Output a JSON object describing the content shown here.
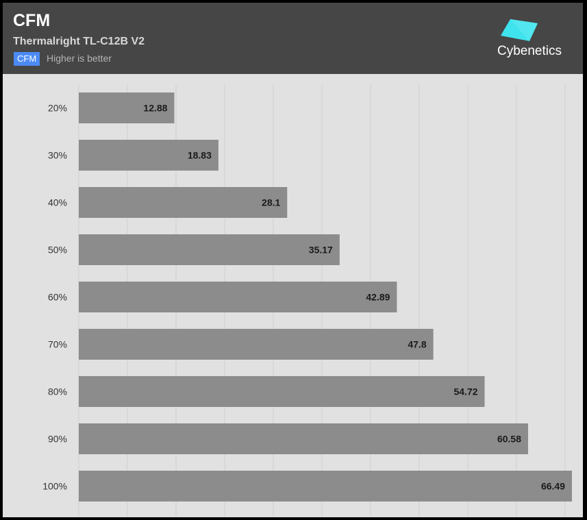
{
  "header": {
    "title": "CFM",
    "subtitle": "Thermalright TL-C12B V2",
    "badge": "CFM",
    "hint": "Higher is better",
    "logo_text": "Cybenetics"
  },
  "colors": {
    "header_bg": "#464646",
    "plot_bg": "#e1e1e1",
    "bar": "#8c8c8c",
    "badge": "#4c8bf5",
    "logo_cyan": "#3fe3ee"
  },
  "chart_data": {
    "type": "bar",
    "orientation": "horizontal",
    "title": "CFM",
    "subtitle": "Thermalright TL-C12B V2",
    "xlabel": "",
    "ylabel": "",
    "categories": [
      "20%",
      "30%",
      "40%",
      "50%",
      "60%",
      "70%",
      "80%",
      "90%",
      "100%"
    ],
    "values": [
      12.88,
      18.83,
      28.1,
      35.17,
      42.89,
      47.8,
      54.72,
      60.58,
      66.49
    ],
    "xlim": [
      0,
      66.49
    ],
    "grid": true,
    "legend": "none"
  }
}
